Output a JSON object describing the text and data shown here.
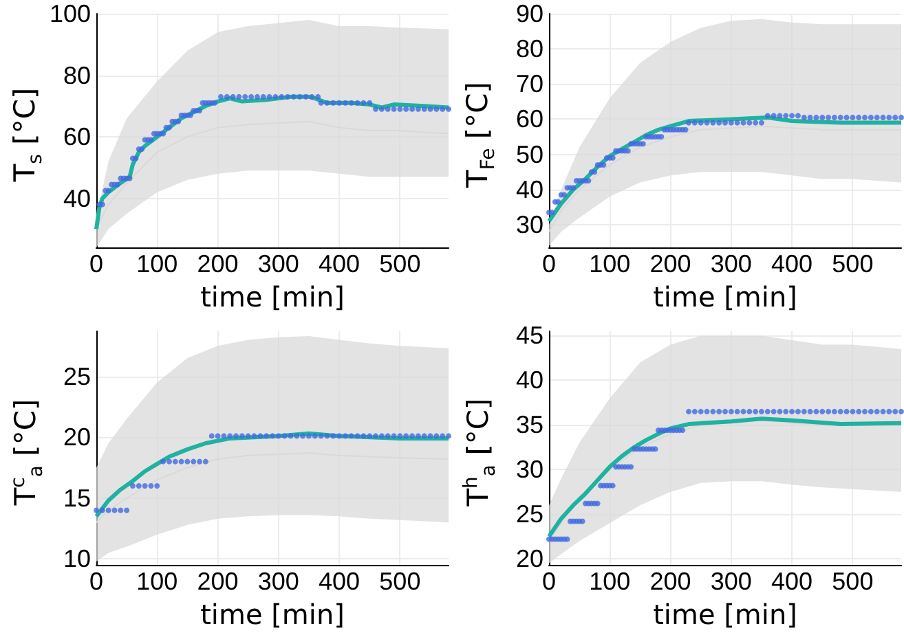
{
  "chart_data": [
    {
      "type": "line",
      "xlabel": "time [min]",
      "ylabel": "T$_{s}$ [°C]",
      "xlim": [
        0,
        580
      ],
      "xticks": [
        0,
        100,
        200,
        300,
        400,
        500
      ],
      "ylim": [
        24,
        100
      ],
      "yticks": [
        40,
        60,
        80,
        100
      ],
      "grid": true,
      "series": [
        {
          "color": "#d9d9d9",
          "x": [
            0,
            20,
            50,
            100,
            150,
            200,
            250,
            300,
            350,
            400,
            450,
            500,
            580
          ],
          "values": [
            30,
            38,
            45,
            55,
            60,
            63,
            64,
            64.5,
            65,
            63,
            62,
            62,
            61
          ],
          "lower": [
            24,
            30,
            35,
            42,
            46,
            48,
            49,
            49,
            49,
            48,
            47,
            47,
            47
          ],
          "upper": [
            34,
            52,
            66,
            78,
            88,
            94,
            96,
            97,
            98,
            96,
            96,
            95.5,
            95
          ]
        },
        {
          "color": "#20b2a0",
          "x": [
            0,
            5,
            10,
            20,
            40,
            55,
            60,
            70,
            80,
            100,
            120,
            140,
            160,
            180,
            200,
            220,
            240,
            280,
            320,
            350,
            360,
            380,
            420,
            450,
            470,
            490,
            540,
            580
          ],
          "values": [
            30,
            37,
            40,
            42,
            45,
            47,
            51,
            55,
            57,
            60,
            63,
            66,
            68,
            70,
            71.5,
            72.5,
            71.5,
            72,
            73,
            73,
            72.5,
            71,
            71,
            70.5,
            69.5,
            70.5,
            70,
            69.5
          ]
        },
        {
          "type": "scatter",
          "marker": "circle",
          "color": "#4169e1",
          "x": [
            5,
            10,
            15,
            20,
            25,
            30,
            35,
            40,
            45,
            50,
            55,
            60,
            65,
            70,
            75,
            80,
            85,
            90,
            95,
            100,
            105,
            110,
            115,
            120,
            125,
            130,
            135,
            140,
            145,
            150,
            155,
            160,
            165,
            170,
            175,
            180,
            185,
            190,
            195,
            205,
            215,
            225,
            235,
            245,
            255,
            265,
            275,
            285,
            295,
            305,
            315,
            325,
            335,
            345,
            355,
            365,
            370,
            380,
            390,
            400,
            410,
            420,
            430,
            440,
            450,
            460,
            470,
            480,
            490,
            500,
            510,
            520,
            530,
            540,
            550,
            560,
            570,
            580
          ],
          "values": [
            38,
            38,
            42.5,
            42.5,
            44.5,
            44.5,
            44.5,
            46.5,
            46.5,
            46.5,
            46.5,
            53,
            53,
            56,
            56,
            59,
            59,
            59,
            61,
            61,
            61,
            61,
            63,
            63,
            65,
            65,
            65,
            67,
            67,
            67,
            67,
            68.5,
            68.5,
            68.5,
            71,
            71,
            71,
            71,
            71,
            73,
            73,
            73,
            73,
            73,
            73,
            73,
            73,
            73,
            73,
            73,
            73,
            73,
            73,
            73,
            73,
            73,
            71,
            71,
            71,
            71,
            71,
            71,
            71,
            71,
            71,
            69,
            69,
            69,
            69,
            69,
            69,
            69,
            69,
            69,
            69,
            69,
            69,
            69
          ]
        }
      ]
    },
    {
      "type": "line",
      "xlabel": "time [min]",
      "ylabel": "T$_{Fe}$ [°C]",
      "xlim": [
        0,
        580
      ],
      "xticks": [
        0,
        100,
        200,
        300,
        400,
        500
      ],
      "ylim": [
        23.5,
        90
      ],
      "yticks": [
        30,
        40,
        50,
        60,
        70,
        80,
        90
      ],
      "grid": true,
      "series": [
        {
          "color": "#d9d9d9",
          "x": [
            0,
            20,
            50,
            100,
            150,
            200,
            250,
            300,
            350,
            400,
            450,
            500,
            580
          ],
          "values": [
            28,
            34,
            40,
            47,
            52,
            55,
            57,
            57.5,
            58,
            57.5,
            57,
            57,
            57
          ],
          "lower": [
            24,
            28,
            32,
            38,
            42,
            44,
            45,
            45,
            45,
            44,
            43,
            43,
            42
          ],
          "upper": [
            30,
            40,
            52,
            66,
            76,
            82,
            86,
            88,
            88.5,
            87.5,
            87,
            87,
            87
          ]
        },
        {
          "color": "#20b2a0",
          "x": [
            0,
            20,
            40,
            60,
            80,
            100,
            120,
            140,
            160,
            180,
            200,
            230,
            300,
            360,
            400,
            480,
            580
          ],
          "values": [
            31,
            36,
            40,
            43,
            46.5,
            49.5,
            51.5,
            53.5,
            55.5,
            57,
            58,
            59.5,
            60,
            60.5,
            59.5,
            59,
            59
          ]
        },
        {
          "type": "scatter",
          "marker": "circle",
          "color": "#4169e1",
          "x": [
            0,
            5,
            10,
            15,
            20,
            25,
            30,
            35,
            40,
            45,
            50,
            55,
            60,
            65,
            70,
            75,
            80,
            85,
            90,
            95,
            100,
            105,
            110,
            115,
            120,
            125,
            130,
            135,
            140,
            145,
            150,
            155,
            160,
            165,
            170,
            175,
            180,
            185,
            190,
            195,
            200,
            205,
            210,
            215,
            220,
            225,
            230,
            240,
            250,
            260,
            270,
            280,
            290,
            300,
            310,
            320,
            330,
            340,
            350,
            360,
            370,
            380,
            390,
            400,
            410,
            420,
            430,
            440,
            450,
            460,
            470,
            480,
            490,
            500,
            510,
            520,
            530,
            540,
            550,
            560,
            570,
            580
          ],
          "values": [
            33.5,
            33.5,
            36.5,
            36.5,
            38.5,
            38.5,
            40.5,
            40.5,
            40.5,
            42.5,
            42.5,
            42.5,
            42.5,
            42.5,
            45,
            45,
            47,
            47,
            47,
            49,
            49,
            49,
            51,
            51,
            51,
            51,
            51,
            53,
            53,
            53,
            53,
            53,
            55,
            55,
            55,
            55,
            55,
            55,
            57,
            57,
            57,
            57,
            57,
            57,
            57,
            57,
            59,
            59,
            59,
            59,
            59,
            59,
            59,
            59,
            59,
            59,
            59,
            59,
            59,
            61,
            61,
            61,
            61,
            61,
            61,
            60.5,
            60.5,
            60.5,
            60.5,
            60.5,
            60.5,
            60.5,
            60.5,
            60.5,
            60.5,
            60.5,
            60.5,
            60.5,
            60.5,
            60.5,
            60.5,
            60.5
          ]
        }
      ]
    },
    {
      "type": "line",
      "xlabel": "time [min]",
      "ylabel": "T$^{c}$$_{a}$ [°C]",
      "xlim": [
        0,
        580
      ],
      "xticks": [
        0,
        100,
        200,
        300,
        400,
        500
      ],
      "ylim": [
        9.5,
        28.7
      ],
      "yticks": [
        10,
        15,
        20,
        25
      ],
      "grid": true,
      "series": [
        {
          "color": "#d9d9d9",
          "x": [
            0,
            20,
            50,
            100,
            150,
            200,
            250,
            300,
            350,
            400,
            450,
            500,
            580
          ],
          "values": [
            13,
            14,
            15,
            16.5,
            17.5,
            18.2,
            18.5,
            18.6,
            18.7,
            18.5,
            18.4,
            18.3,
            18.2
          ],
          "lower": [
            9.8,
            10.5,
            11,
            12,
            12.8,
            13.3,
            13.5,
            13.6,
            13.6,
            13.5,
            13.3,
            13.2,
            13
          ],
          "upper": [
            17.5,
            19.5,
            21.5,
            24.5,
            26.5,
            27.5,
            28,
            28.2,
            28.3,
            28,
            27.7,
            27.5,
            27.3
          ]
        },
        {
          "color": "#20b2a0",
          "x": [
            0,
            20,
            40,
            60,
            80,
            100,
            120,
            150,
            180,
            220,
            300,
            350,
            400,
            500,
            580
          ],
          "values": [
            13.5,
            14.8,
            15.7,
            16.4,
            17.2,
            17.8,
            18.4,
            19,
            19.5,
            19.9,
            20.1,
            20.3,
            20.1,
            19.9,
            19.9
          ]
        },
        {
          "type": "scatter",
          "marker": "circle",
          "color": "#4169e1",
          "x": [
            0,
            10,
            20,
            30,
            40,
            50,
            60,
            70,
            80,
            90,
            100,
            110,
            120,
            130,
            140,
            150,
            160,
            170,
            180,
            190,
            200,
            210,
            220,
            230,
            240,
            250,
            260,
            270,
            280,
            290,
            300,
            310,
            320,
            330,
            340,
            350,
            360,
            370,
            380,
            390,
            400,
            410,
            420,
            430,
            440,
            450,
            460,
            470,
            480,
            490,
            500,
            510,
            520,
            530,
            540,
            550,
            560,
            570,
            580
          ],
          "values": [
            14,
            14,
            14,
            14,
            14,
            14,
            16,
            16,
            16,
            16,
            16,
            18,
            18,
            18,
            18,
            18,
            18,
            18,
            18,
            20.1,
            20.1,
            20.1,
            20.1,
            20.1,
            20.1,
            20.1,
            20.1,
            20.1,
            20.1,
            20.1,
            20.1,
            20.1,
            20.1,
            20.1,
            20.1,
            20.1,
            20.1,
            20.1,
            20.1,
            20.1,
            20.1,
            20.1,
            20.1,
            20.1,
            20.1,
            20.1,
            20.1,
            20.1,
            20.1,
            20.1,
            20.1,
            20.1,
            20.1,
            20.1,
            20.1,
            20.1,
            20.1,
            20.1,
            20.1
          ]
        }
      ]
    },
    {
      "type": "line",
      "xlabel": "time [min]",
      "ylabel": "T$^{h}$$_{a}$ [°C]",
      "xlim": [
        0,
        580
      ],
      "xticks": [
        0,
        100,
        200,
        300,
        400,
        500
      ],
      "ylim": [
        19.3,
        45.5
      ],
      "yticks": [
        20,
        25,
        30,
        35,
        40,
        45
      ],
      "grid": true,
      "series": [
        {
          "color": "#d9d9d9",
          "x": [
            0,
            20,
            50,
            100,
            150,
            200,
            250,
            300,
            350,
            400,
            450,
            500,
            580
          ],
          "values": [
            22,
            24,
            27,
            30,
            32.5,
            34,
            35,
            35.3,
            35.5,
            35.2,
            35,
            35,
            35
          ],
          "lower": [
            19.5,
            20.5,
            22,
            24,
            26,
            27.5,
            28.5,
            28.7,
            28.7,
            28.3,
            28,
            27.8,
            27.5
          ],
          "upper": [
            26,
            29,
            33,
            38,
            42,
            44,
            45,
            45,
            45,
            44.5,
            44,
            44,
            43.5
          ]
        },
        {
          "color": "#20b2a0",
          "x": [
            0,
            20,
            40,
            60,
            80,
            100,
            120,
            140,
            160,
            180,
            200,
            230,
            300,
            350,
            400,
            480,
            580
          ],
          "values": [
            22.5,
            24.5,
            26,
            27.3,
            28.8,
            30.3,
            31.5,
            32.5,
            33.3,
            34,
            34.6,
            35.1,
            35.4,
            35.7,
            35.5,
            35.1,
            35.2
          ]
        },
        {
          "type": "scatter",
          "marker": "circle",
          "color": "#4169e1",
          "x": [
            0,
            5,
            10,
            15,
            20,
            25,
            30,
            35,
            40,
            45,
            50,
            55,
            60,
            65,
            70,
            75,
            80,
            85,
            90,
            95,
            100,
            105,
            110,
            115,
            120,
            125,
            130,
            135,
            140,
            145,
            150,
            155,
            160,
            165,
            170,
            175,
            180,
            185,
            190,
            195,
            200,
            205,
            210,
            215,
            220,
            230,
            240,
            250,
            260,
            270,
            280,
            290,
            300,
            310,
            320,
            330,
            340,
            350,
            360,
            370,
            380,
            390,
            400,
            410,
            420,
            430,
            440,
            450,
            460,
            470,
            480,
            490,
            500,
            510,
            520,
            530,
            540,
            550,
            560,
            570,
            580
          ],
          "values": [
            22.2,
            22.2,
            22.2,
            22.2,
            22.2,
            22.2,
            22.2,
            24.2,
            24.2,
            24.2,
            24.2,
            24.2,
            26.2,
            26.2,
            26.2,
            26.2,
            26.2,
            28.2,
            28.2,
            28.2,
            28.2,
            28.2,
            30.3,
            30.3,
            30.3,
            30.3,
            30.3,
            30.3,
            32.3,
            32.3,
            32.3,
            32.3,
            32.3,
            32.3,
            32.3,
            32.3,
            34.4,
            34.4,
            34.4,
            34.4,
            34.4,
            34.4,
            34.4,
            34.4,
            34.4,
            36.5,
            36.5,
            36.5,
            36.5,
            36.5,
            36.5,
            36.5,
            36.5,
            36.5,
            36.5,
            36.5,
            36.5,
            36.5,
            36.5,
            36.5,
            36.5,
            36.5,
            36.5,
            36.5,
            36.5,
            36.5,
            36.5,
            36.5,
            36.5,
            36.5,
            36.5,
            36.5,
            36.5,
            36.5,
            36.5,
            36.5,
            36.5,
            36.5,
            36.5,
            36.5,
            36.5
          ]
        }
      ]
    }
  ]
}
